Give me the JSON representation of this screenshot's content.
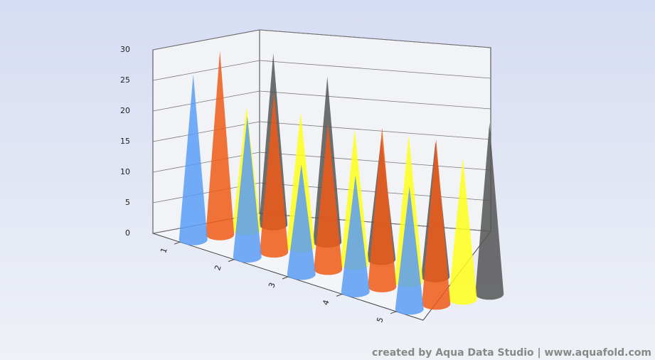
{
  "chart_data": {
    "type": "cone3d",
    "categories": [
      "1",
      "2",
      "3",
      "4",
      "5"
    ],
    "series": [
      {
        "color": "#5b9cf6",
        "values": [
          27,
          23,
          18,
          19,
          20
        ]
      },
      {
        "color": "#ef5a17",
        "values": [
          30,
          26,
          24,
          26,
          27
        ]
      },
      {
        "color": "#ffff1a",
        "values": [
          20,
          22,
          22,
          24,
          23
        ]
      },
      {
        "color": "#555555",
        "values": [
          28,
          27,
          20,
          22,
          28
        ]
      }
    ],
    "ylim": [
      0,
      30
    ],
    "yticks": [
      0,
      5,
      10,
      15,
      20,
      25,
      30
    ],
    "grid": true,
    "watermark": "created by Aqua Data Studio | www.aquafold.com"
  }
}
